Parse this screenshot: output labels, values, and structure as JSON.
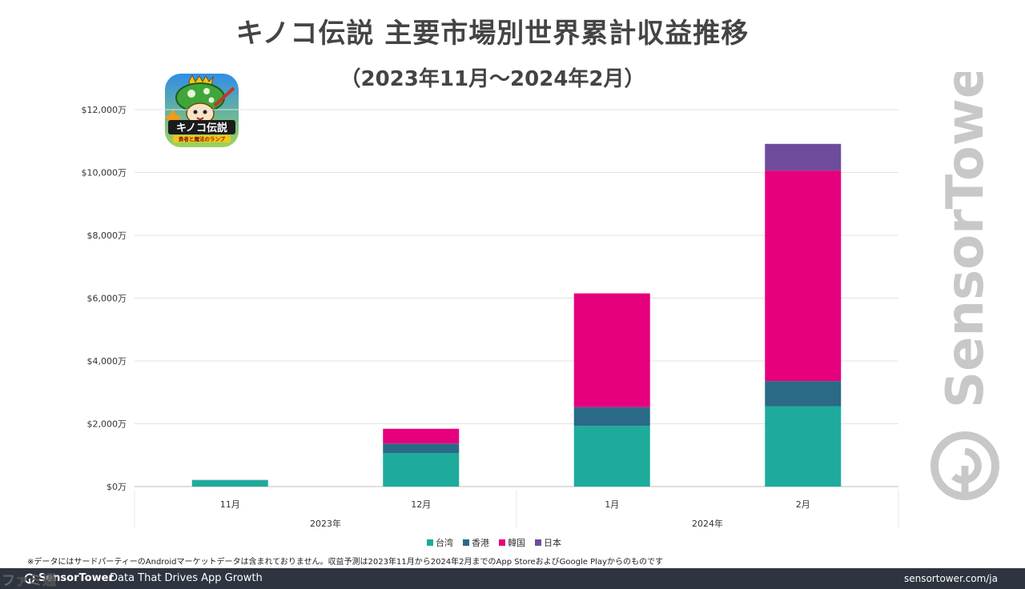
{
  "header": {
    "title": "キノコ伝説 主要市場別世界累計収益推移",
    "subtitle": "（2023年11月〜2024年2月）"
  },
  "app_icon": {
    "icon": "mushroom-legend-app-icon",
    "text": "キノコ伝説",
    "tagline": "勇者と魔法のランプ"
  },
  "watermark": {
    "text": "SensorTower"
  },
  "chart_data": {
    "type": "bar",
    "stacked": true,
    "title": "キノコ伝説 主要市場別世界累計収益推移",
    "subtitle": "（2023年11月〜2024年2月）",
    "categories": [
      "11月",
      "12月",
      "1月",
      "2月"
    ],
    "category_groups": [
      {
        "label": "2023年",
        "categories": [
          "11月",
          "12月"
        ]
      },
      {
        "label": "2024年",
        "categories": [
          "1月",
          "2月"
        ]
      }
    ],
    "series": [
      {
        "name": "台湾",
        "color": "#1eab9c",
        "values": [
          200,
          1070,
          1930,
          2560
        ]
      },
      {
        "name": "香港",
        "color": "#2b6a86",
        "values": [
          10,
          300,
          600,
          800
        ]
      },
      {
        "name": "韓国",
        "color": "#e6007e",
        "values": [
          0,
          470,
          3620,
          6700
        ]
      },
      {
        "name": "日本",
        "color": "#6f4c9b",
        "values": [
          0,
          0,
          0,
          850
        ]
      }
    ],
    "ylim": [
      0,
      12000
    ],
    "yticks": [
      0,
      2000,
      4000,
      6000,
      8000,
      10000,
      12000
    ],
    "ytick_labels": [
      "$0万",
      "$2,000万",
      "$4,000万",
      "$6,000万",
      "$8,000万",
      "$10,000万",
      "$12,000万"
    ],
    "grid": true,
    "legend_position": "bottom"
  },
  "footnote": "※データにはサードパーティーのAndroidマーケットデータは含まれておりません。収益予測は2023年11月から2024年2月までのApp StoreおよびGoogle Playからのものです",
  "footer": {
    "logo_text": "SensorTower",
    "tagline": "Data That Drives App Growth",
    "url": "sensortower.com/ja"
  },
  "site_mark": {
    "text": "ファミ通",
    "icon": "famitsu-logo"
  }
}
